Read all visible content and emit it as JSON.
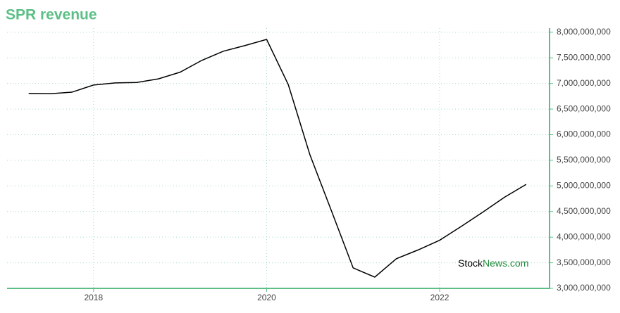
{
  "chart_data": {
    "type": "line",
    "title": "SPR revenue",
    "x": [
      2017.25,
      2017.5,
      2017.75,
      2018.0,
      2018.25,
      2018.5,
      2018.75,
      2019.0,
      2019.25,
      2019.5,
      2019.75,
      2020.0,
      2020.25,
      2020.5,
      2020.75,
      2021.0,
      2021.25,
      2021.5,
      2021.75,
      2022.0,
      2022.25,
      2022.5,
      2022.75,
      2023.0
    ],
    "series": [
      {
        "name": "SPR revenue",
        "color": "#000000",
        "values": [
          6805000000,
          6800000000,
          6830000000,
          6970000000,
          7010000000,
          7020000000,
          7090000000,
          7220000000,
          7450000000,
          7630000000,
          7740000000,
          7860000000,
          6980000000,
          5610000000,
          4510000000,
          3400000000,
          3220000000,
          3580000000,
          3750000000,
          3940000000,
          4210000000,
          4490000000,
          4780000000,
          5030000000
        ]
      }
    ],
    "xlim": [
      2017.0,
      2023.27
    ],
    "xticks": [
      2018,
      2020,
      2022
    ],
    "ylim": [
      3000000000,
      8080000000
    ],
    "yticks": [
      {
        "value": 3000000000,
        "label": "3,000,000,000"
      },
      {
        "value": 3500000000,
        "label": "3,500,000,000"
      },
      {
        "value": 4000000000,
        "label": "4,000,000,000"
      },
      {
        "value": 4500000000,
        "label": "4,500,000,000"
      },
      {
        "value": 5000000000,
        "label": "5,000,000,000"
      },
      {
        "value": 5500000000,
        "label": "5,500,000,000"
      },
      {
        "value": 6000000000,
        "label": "6,000,000,000"
      },
      {
        "value": 6500000000,
        "label": "6,500,000,000"
      },
      {
        "value": 7000000000,
        "label": "7,000,000,000"
      },
      {
        "value": 7500000000,
        "label": "7,500,000,000"
      },
      {
        "value": 8000000000,
        "label": "8,000,000,000"
      }
    ],
    "grid": true,
    "axis_color": "#5cbf86"
  },
  "watermark": {
    "part1": "Stock",
    "part2": "News.com"
  }
}
